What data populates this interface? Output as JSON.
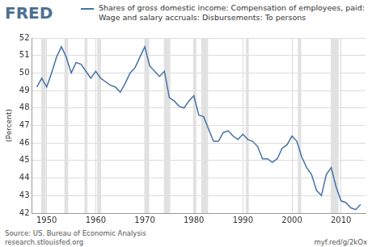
{
  "chart_data": {
    "type": "line",
    "logo": "FRED",
    "y_label": "(Percent)",
    "source": "Source: US. Bureau of Economic Analysis",
    "footer_left": "research.stlouisfed.org",
    "footer_right": "myf.red/g/2kOx",
    "legend": "top",
    "grid": true,
    "xlim": [
      1947,
      2015
    ],
    "xticks": [
      1950,
      1960,
      1970,
      1980,
      1990,
      2000,
      2010
    ],
    "ylim": [
      42,
      52
    ],
    "yticks": [
      42,
      43,
      44,
      45,
      46,
      47,
      48,
      49,
      50,
      51,
      52
    ],
    "x": [
      1948,
      1949,
      1950,
      1951,
      1952,
      1953,
      1954,
      1955,
      1956,
      1957,
      1958,
      1959,
      1960,
      1961,
      1962,
      1963,
      1964,
      1965,
      1966,
      1967,
      1968,
      1969,
      1970,
      1971,
      1972,
      1973,
      1974,
      1975,
      1976,
      1977,
      1978,
      1979,
      1980,
      1981,
      1982,
      1983,
      1984,
      1985,
      1986,
      1987,
      1988,
      1989,
      1990,
      1991,
      1992,
      1993,
      1994,
      1995,
      1996,
      1997,
      1998,
      1999,
      2000,
      2001,
      2002,
      2003,
      2004,
      2005,
      2006,
      2007,
      2008,
      2009,
      2010,
      2011,
      2012,
      2013,
      2014
    ],
    "series": [
      {
        "name": "Shares of gross domestic income: Compensation of employees, paid: Wage and salary accruals: Disbursements: To persons",
        "color": "#4572a7",
        "values": [
          49.2,
          49.7,
          49.2,
          50.0,
          50.9,
          51.5,
          50.9,
          50.0,
          50.6,
          50.5,
          50.1,
          49.7,
          50.1,
          49.7,
          49.5,
          49.3,
          49.2,
          48.9,
          49.4,
          50.0,
          50.3,
          50.9,
          51.5,
          50.4,
          50.1,
          49.8,
          50.1,
          48.6,
          48.4,
          48.1,
          48.0,
          48.4,
          48.7,
          47.6,
          47.5,
          46.8,
          46.1,
          46.1,
          46.6,
          46.7,
          46.4,
          46.2,
          46.5,
          46.2,
          46.1,
          45.8,
          45.1,
          45.1,
          44.9,
          45.1,
          45.7,
          45.9,
          46.4,
          46.1,
          45.2,
          44.6,
          44.2,
          43.3,
          43.0,
          44.2,
          44.6,
          43.5,
          42.7,
          42.6,
          42.3,
          42.2,
          42.5
        ]
      }
    ],
    "shaded_ranges": [
      [
        1948.9,
        1949.8
      ],
      [
        1953.6,
        1954.4
      ],
      [
        1957.7,
        1958.3
      ],
      [
        1960.3,
        1961.1
      ],
      [
        1969.9,
        1970.9
      ],
      [
        1973.9,
        1975.2
      ],
      [
        1980.0,
        1980.5
      ],
      [
        1981.5,
        1982.9
      ],
      [
        1990.6,
        1991.2
      ],
      [
        2001.2,
        2001.9
      ],
      [
        2007.9,
        2009.5
      ]
    ]
  }
}
